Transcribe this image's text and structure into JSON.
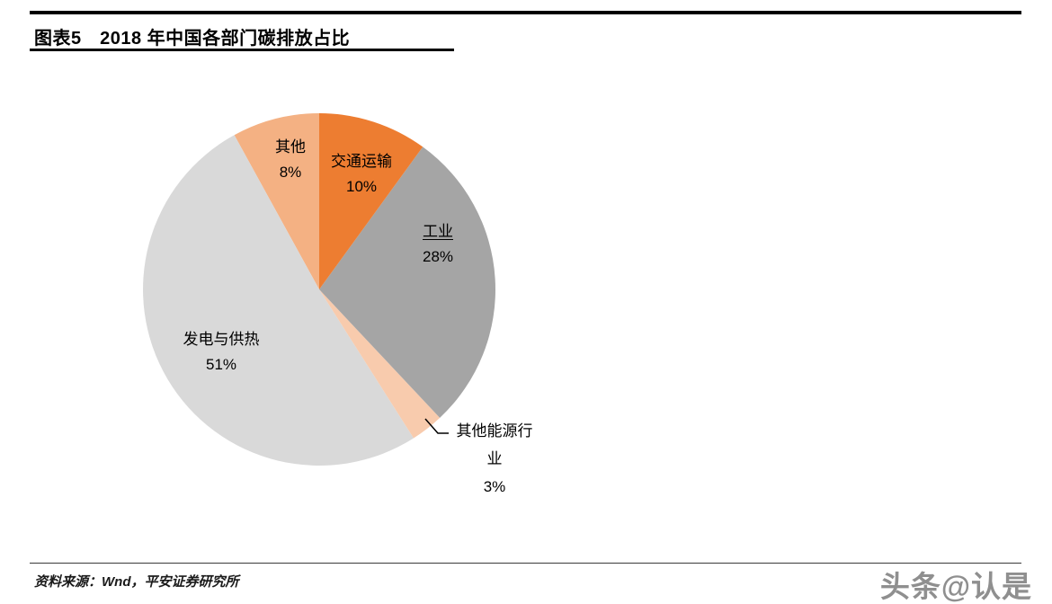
{
  "header": {
    "title": "图表5　2018 年中国各部门碳排放占比"
  },
  "footer": {
    "source": "资料来源：Wnd，平安证券研究所",
    "watermark": "头条@认是"
  },
  "chart_data": {
    "type": "pie",
    "title": "2018 年中国各部门碳排放占比",
    "units": "percent",
    "start_angle_deg": 0,
    "direction": "clockwise",
    "legend": "none",
    "slices": [
      {
        "label": "交通运输",
        "value": 10,
        "pct_label": "10%",
        "color": "#ED7D31"
      },
      {
        "label": "工业",
        "value": 28,
        "pct_label": "28%",
        "color": "#A5A5A5"
      },
      {
        "label": "其他能源行业",
        "value": 3,
        "pct_label": "3%",
        "color": "#F8CBAD"
      },
      {
        "label": "发电与供热",
        "value": 51,
        "pct_label": "51%",
        "color": "#D9D9D9"
      },
      {
        "label": "其他",
        "value": 8,
        "pct_label": "8%",
        "color": "#F4B183"
      }
    ]
  }
}
